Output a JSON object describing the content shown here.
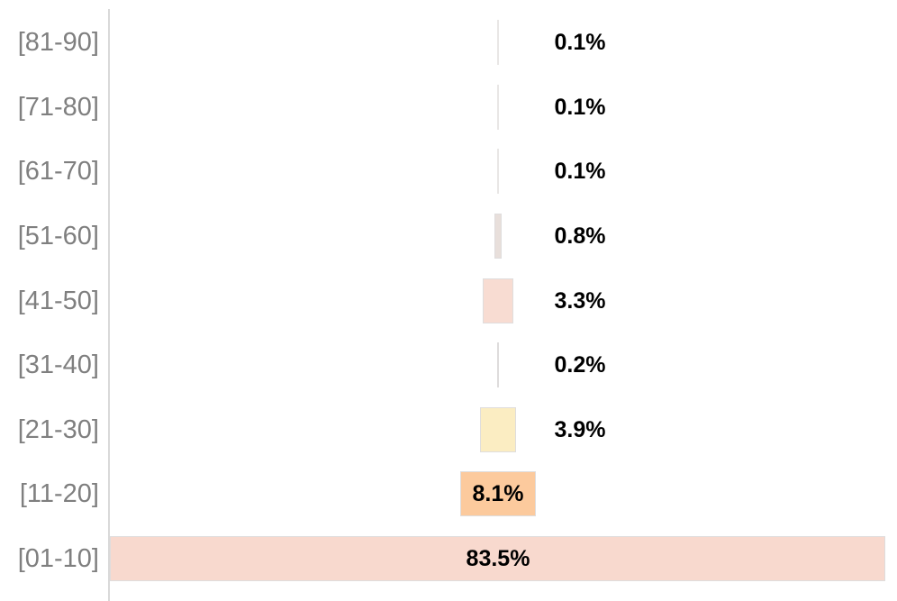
{
  "chart_data": {
    "type": "bar",
    "variant": "funnel-centered-horizontal",
    "title": "",
    "xlabel": "",
    "ylabel": "",
    "legend": "none",
    "grid": false,
    "max_value": 83.5,
    "categories": [
      "[81-90]",
      "[71-80]",
      "[61-70]",
      "[51-60]",
      "[41-50]",
      "[31-40]",
      "[21-30]",
      "[11-20]",
      "[01-10]"
    ],
    "values": [
      0.1,
      0.1,
      0.1,
      0.8,
      3.3,
      0.2,
      3.9,
      8.1,
      83.5
    ],
    "labels": [
      "0.1%",
      "0.1%",
      "0.1%",
      "0.8%",
      "3.3%",
      "0.2%",
      "3.9%",
      "8.1%",
      "83.5%"
    ],
    "label_placement": [
      "outside",
      "outside",
      "outside",
      "outside",
      "outside",
      "outside",
      "outside",
      "inside",
      "inside"
    ],
    "bar_colors": [
      "#e9e7e6",
      "#e9e7e6",
      "#e9e7e6",
      "#e8dfdb",
      "#f8dcd2",
      "#dedcdc",
      "#fbedc2",
      "#fcca9d",
      "#f8d9ce"
    ],
    "bar_border_color": "#dfdddd",
    "axis_color": "#d9d9d9",
    "category_label_color": "#7f7f7f",
    "value_label_color": "#000000",
    "background_color": "#ffffff"
  }
}
